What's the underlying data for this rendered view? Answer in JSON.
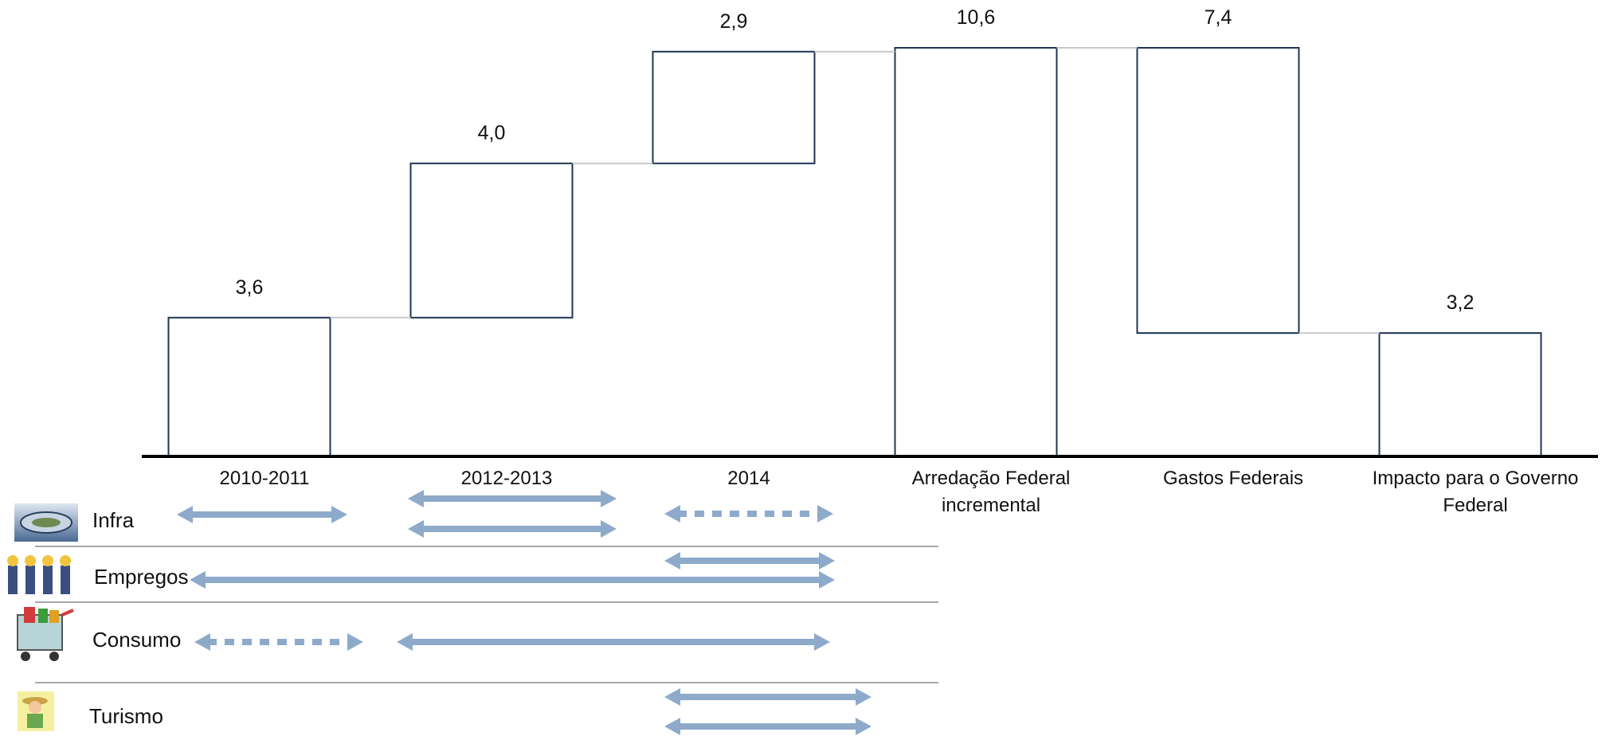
{
  "chart_data": {
    "type": "waterfall",
    "categories": [
      "2010-2011",
      "2012-2013",
      "2014",
      "Arredação Federal\nincremental",
      "Gastos Federais",
      "Impacto para o Governo\nFederal"
    ],
    "values": [
      3.6,
      4.0,
      2.9,
      10.6,
      -7.4,
      3.2
    ],
    "value_labels": [
      "3,6",
      "4,0",
      "2,9",
      "10,6",
      "7,4",
      "3,2"
    ],
    "bar_kinds": [
      "increase",
      "increase",
      "increase",
      "total",
      "decrease",
      "total"
    ],
    "ylim": [
      0,
      10.6
    ],
    "colors": {
      "bar_fill": "#ffffff",
      "bar_stroke": "#1f3554",
      "connector": "#c8c8c8",
      "arrow": "#8eaacb"
    }
  },
  "impact_rows": [
    {
      "label": "Infra",
      "icon": "stadium-icon",
      "arrows": [
        {
          "from_period": "2010-2011",
          "to_period": "2010-2011",
          "style": "solid"
        },
        {
          "from_period": "2012-2013",
          "to_period": "2012-2013",
          "style": "solid"
        },
        {
          "from_period": "2012-2013",
          "to_period": "2012-2013",
          "style": "solid"
        },
        {
          "from_period": "2014",
          "to_period": "2014",
          "style": "dashed"
        }
      ]
    },
    {
      "label": "Empregos",
      "icon": "workers-icon",
      "arrows": [
        {
          "from_period": "2014",
          "to_period": "2014",
          "style": "solid"
        },
        {
          "from_period": "2010-2011",
          "to_period": "2014",
          "style": "solid"
        }
      ]
    },
    {
      "label": "Consumo",
      "icon": "shopping-cart-icon",
      "arrows": [
        {
          "from_period": "2010-2011",
          "to_period": "2010-2011",
          "style": "dashed"
        },
        {
          "from_period": "2012-2013",
          "to_period": "2014",
          "style": "solid"
        }
      ]
    },
    {
      "label": "Turismo",
      "icon": "tourist-icon",
      "arrows": [
        {
          "from_period": "2014",
          "to_period": "2014",
          "style": "solid"
        },
        {
          "from_period": "2014",
          "to_period": "2014",
          "style": "solid"
        }
      ]
    }
  ]
}
